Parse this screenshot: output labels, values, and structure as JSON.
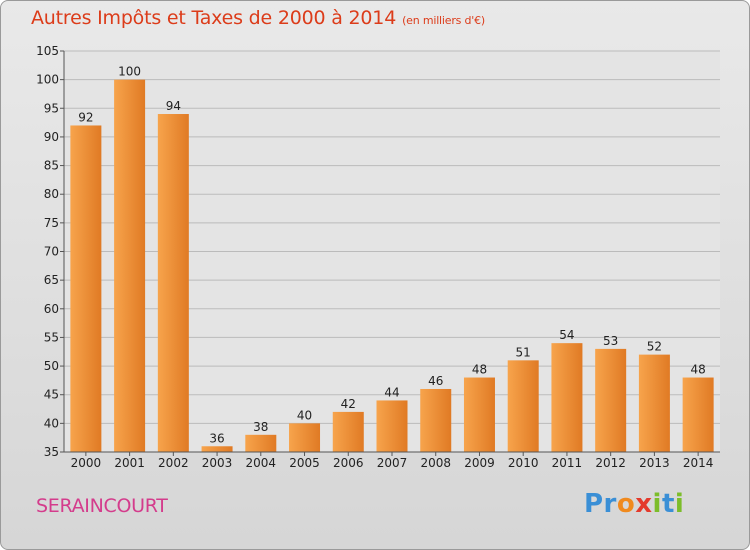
{
  "header": {
    "title": "Autres Impôts et Taxes de 2000 à 2014",
    "subtitle": "(en milliers d'€)"
  },
  "footer": {
    "commune": "SERAINCOURT",
    "logo_parts": [
      {
        "text": "Pr",
        "color": "#3a8fd6"
      },
      {
        "text": "o",
        "color": "#f08a1e"
      },
      {
        "text": "x",
        "color": "#e43a2c"
      },
      {
        "text": "i",
        "color": "#7cbd2a"
      },
      {
        "text": "t",
        "color": "#3a8fd6"
      },
      {
        "text": "i",
        "color": "#7cbd2a"
      }
    ]
  },
  "colors": {
    "title": "#dc3c1a",
    "commune": "#d43c8c",
    "bar_light": "#f7a44c",
    "bar_dark": "#e07a24",
    "grid": "#bbbbbb"
  },
  "chart_data": {
    "type": "bar",
    "categories": [
      "2000",
      "2001",
      "2002",
      "2003",
      "2004",
      "2005",
      "2006",
      "2007",
      "2008",
      "2009",
      "2010",
      "2011",
      "2012",
      "2013",
      "2014"
    ],
    "values": [
      92,
      100,
      94,
      36,
      38,
      40,
      42,
      44,
      46,
      48,
      51,
      54,
      53,
      52,
      48
    ],
    "ylim": [
      35,
      105
    ],
    "yticks": [
      35,
      40,
      45,
      50,
      55,
      60,
      65,
      70,
      75,
      80,
      85,
      90,
      95,
      100,
      105
    ],
    "grid": true
  }
}
